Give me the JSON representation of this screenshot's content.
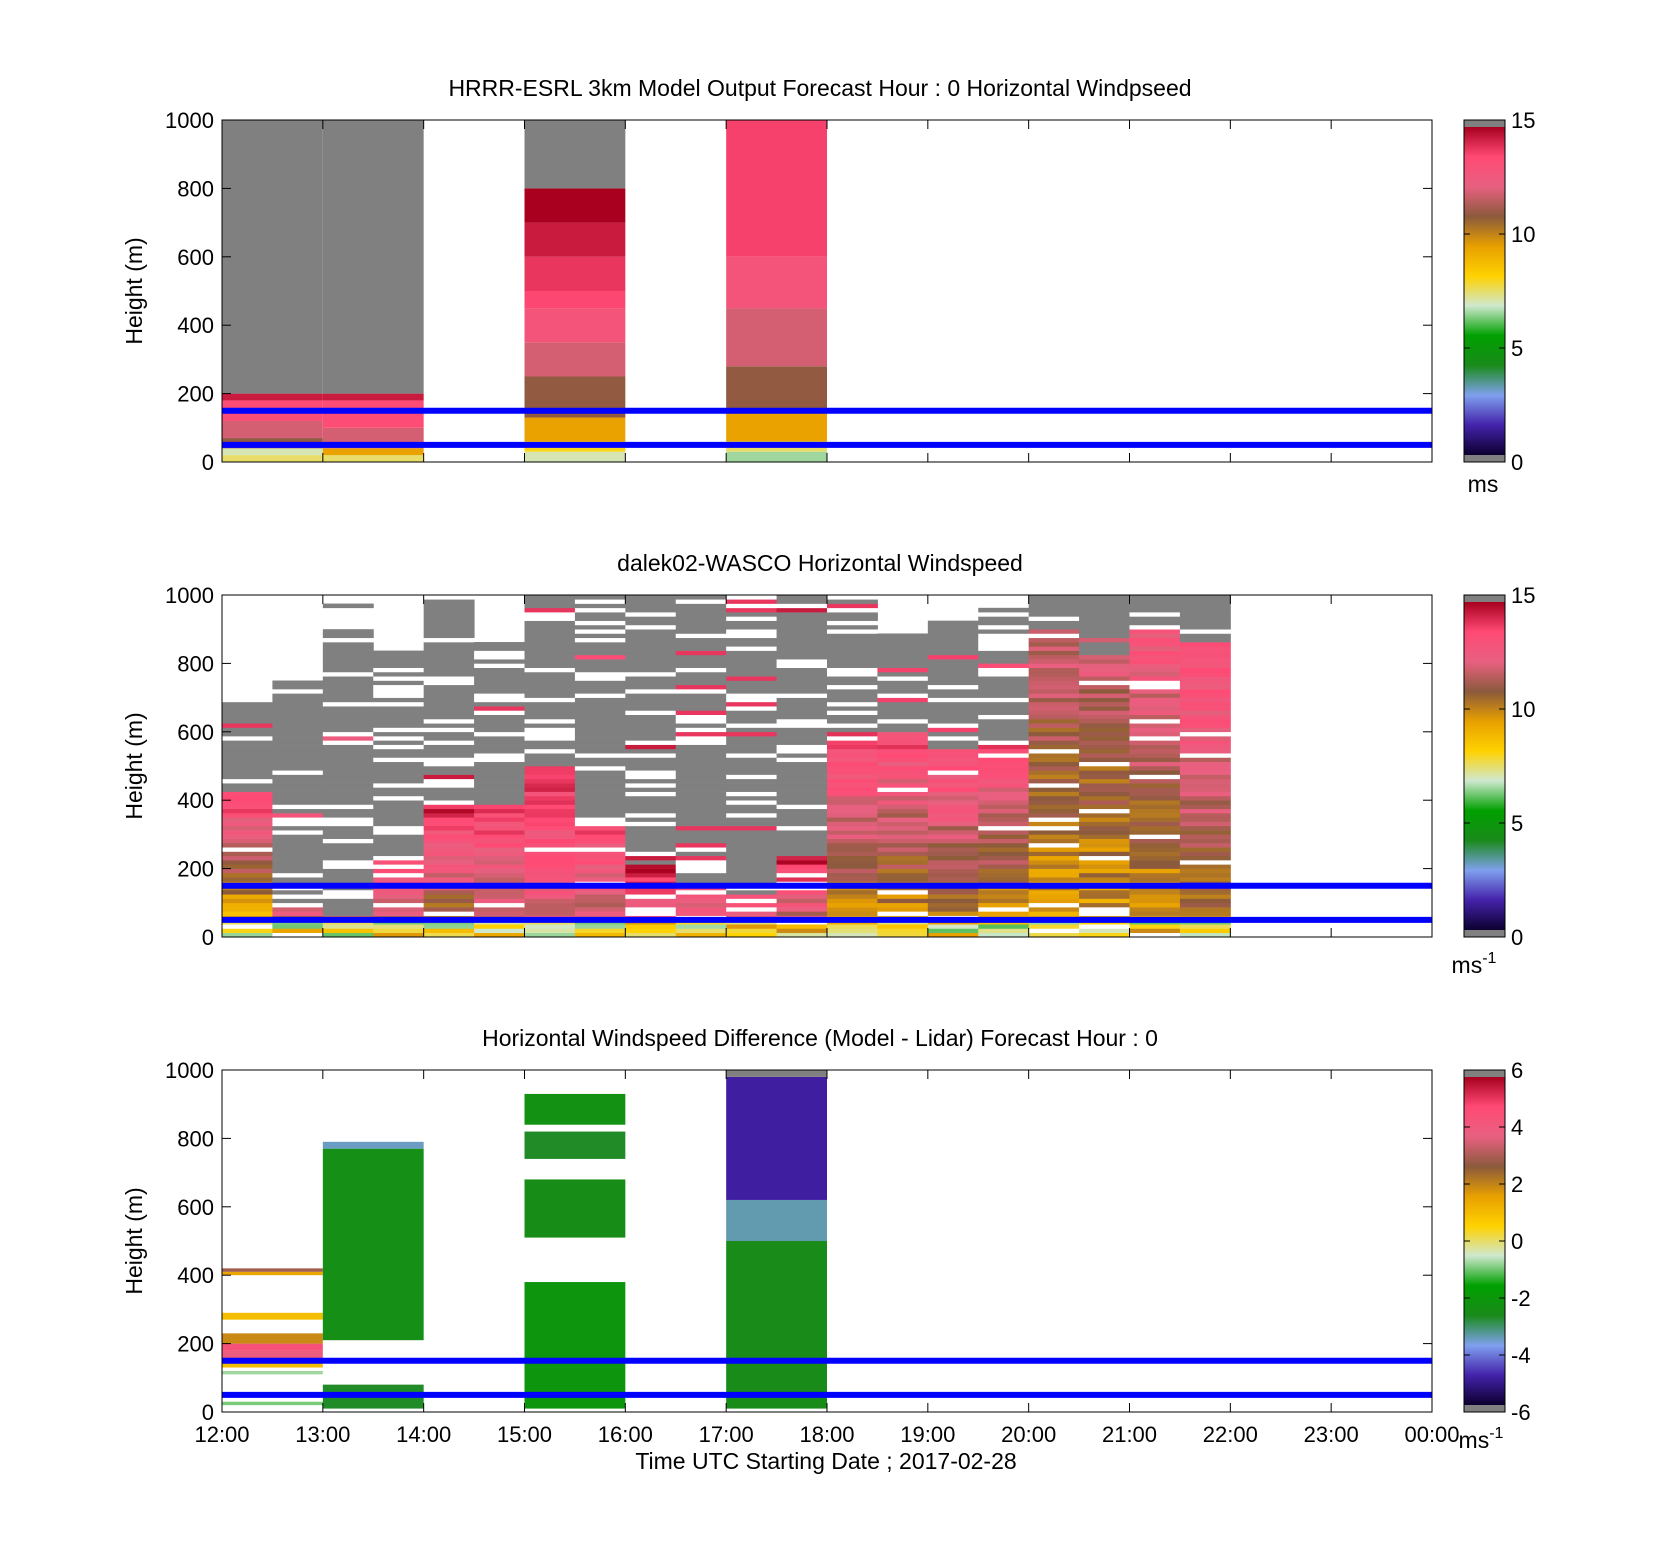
{
  "x_axis": {
    "ticks": [
      "12:00",
      "13:00",
      "14:00",
      "15:00",
      "16:00",
      "17:00",
      "18:00",
      "19:00",
      "20:00",
      "21:00",
      "22:00",
      "23:00",
      "00:00"
    ],
    "xlabel": "Time UTC  Starting Date ; 2017-02-28"
  },
  "overlay_lines": {
    "color": "#0000ff",
    "heights_m": [
      150,
      50
    ]
  },
  "chart_data": [
    {
      "type": "heatmap",
      "title": "HRRR-ESRL 3km Model Output   Forecast Hour : 0 Horizontal Windpseed",
      "ylabel": "Height (m)",
      "ylim": [
        0,
        1000
      ],
      "yticks": [
        "0",
        "200",
        "400",
        "600",
        "800",
        "1000"
      ],
      "colorbar": {
        "range": [
          0,
          15
        ],
        "ticks": [
          "0",
          "5",
          "10",
          "15"
        ],
        "unit": "ms",
        "unit_sup": "",
        "stops": [
          "#808080",
          "#0c0030",
          "#4422aa",
          "#7fa0ee",
          "#1a8a1a",
          "#00a000",
          "#cfe8cf",
          "#ffd200",
          "#e8a000",
          "#8b5a3c",
          "#e86080",
          "#ff4a75",
          "#a8001e",
          "#808080"
        ]
      },
      "columns": [
        {
          "x_start": "12:00",
          "x_end": "13:00",
          "segments": [
            {
              "from": 0,
              "to": 20,
              "value": 7.5
            },
            {
              "from": 20,
              "to": 40,
              "value": 7
            },
            {
              "from": 40,
              "to": 70,
              "value": 11
            },
            {
              "from": 70,
              "to": 120,
              "value": 12
            },
            {
              "from": 120,
              "to": 180,
              "value": 13.5
            },
            {
              "from": 180,
              "to": 200,
              "value": 14.5
            },
            {
              "from": 200,
              "to": 1000,
              "value": 16
            }
          ]
        },
        {
          "x_start": "13:00",
          "x_end": "14:00",
          "segments": [
            {
              "from": 0,
              "to": 20,
              "value": 7.5
            },
            {
              "from": 20,
              "to": 40,
              "value": 9.5
            },
            {
              "from": 40,
              "to": 100,
              "value": 12
            },
            {
              "from": 100,
              "to": 180,
              "value": 13.5
            },
            {
              "from": 180,
              "to": 200,
              "value": 14.5
            },
            {
              "from": 200,
              "to": 1000,
              "value": 16
            }
          ]
        },
        {
          "x_start": "15:00",
          "x_end": "16:00",
          "segments": [
            {
              "from": 0,
              "to": 30,
              "value": 7
            },
            {
              "from": 30,
              "to": 60,
              "value": 8
            },
            {
              "from": 60,
              "to": 130,
              "value": 9.5
            },
            {
              "from": 130,
              "to": 250,
              "value": 11
            },
            {
              "from": 250,
              "to": 350,
              "value": 12
            },
            {
              "from": 350,
              "to": 450,
              "value": 13
            },
            {
              "from": 450,
              "to": 500,
              "value": 13.7
            },
            {
              "from": 500,
              "to": 600,
              "value": 14
            },
            {
              "from": 600,
              "to": 700,
              "value": 14.5
            },
            {
              "from": 700,
              "to": 800,
              "value": 15
            },
            {
              "from": 800,
              "to": 1000,
              "value": 16
            }
          ]
        },
        {
          "x_start": "17:00",
          "x_end": "18:00",
          "segments": [
            {
              "from": 0,
              "to": 30,
              "value": 6.5
            },
            {
              "from": 30,
              "to": 60,
              "value": 7.5
            },
            {
              "from": 60,
              "to": 150,
              "value": 9.5
            },
            {
              "from": 150,
              "to": 280,
              "value": 11
            },
            {
              "from": 280,
              "to": 450,
              "value": 12
            },
            {
              "from": 450,
              "to": 600,
              "value": 13
            },
            {
              "from": 600,
              "to": 1000,
              "value": 13.8
            }
          ]
        }
      ]
    },
    {
      "type": "heatmap",
      "title": "dalek02-WASCO  Horizontal Windspeed",
      "ylabel": "Height (m)",
      "ylim": [
        0,
        1000
      ],
      "yticks": [
        "0",
        "200",
        "400",
        "600",
        "800",
        "1000"
      ],
      "colorbar": {
        "range": [
          0,
          15
        ],
        "ticks": [
          "0",
          "5",
          "10",
          "15"
        ],
        "unit": "ms",
        "unit_sup": "-1",
        "stops": [
          "#808080",
          "#0c0030",
          "#4422aa",
          "#7fa0ee",
          "#1a8a1a",
          "#00a000",
          "#cfe8cf",
          "#ffd200",
          "#e8a000",
          "#8b5a3c",
          "#e86080",
          "#ff4a75",
          "#a8001e",
          "#808080"
        ]
      },
      "profiles": [
        {
          "time": "12:00",
          "top_data": 420,
          "top_gray": 700,
          "ws_low": 8.5,
          "ws_high": 14
        },
        {
          "time": "12:30",
          "top_data": 90,
          "top_gray": 750,
          "ws_low": 10,
          "ws_high": 13
        },
        {
          "time": "13:00",
          "top_data": 60,
          "top_gray": 900,
          "ws_low": 11,
          "ws_high": 12.5
        },
        {
          "time": "13:30",
          "top_data": 220,
          "top_gray": 830,
          "ws_low": 11,
          "ws_high": 14
        },
        {
          "time": "14:00",
          "top_data": 380,
          "top_gray": 1000,
          "ws_low": 10,
          "ws_high": 14.5
        },
        {
          "time": "14:30",
          "top_data": 380,
          "top_gray": 860,
          "ws_low": 11,
          "ws_high": 14
        },
        {
          "time": "15:00",
          "top_data": 500,
          "top_gray": 1000,
          "ws_low": 12,
          "ws_high": 14
        },
        {
          "time": "15:30",
          "top_data": 330,
          "top_gray": 1000,
          "ws_low": 11.5,
          "ws_high": 13.5
        },
        {
          "time": "16:00",
          "top_data": 210,
          "top_gray": 1000,
          "ws_low": 12,
          "ws_high": 14.5
        },
        {
          "time": "16:30",
          "top_data": 150,
          "top_gray": 1000,
          "ws_low": 11,
          "ws_high": 14
        },
        {
          "time": "17:00",
          "top_data": 120,
          "top_gray": 1000,
          "ws_low": 10,
          "ws_high": 14
        },
        {
          "time": "17:30",
          "top_data": 230,
          "top_gray": 1000,
          "ws_low": 11,
          "ws_high": 14.5
        },
        {
          "time": "18:00",
          "top_data": 600,
          "top_gray": 1000,
          "ws_low": 9.5,
          "ws_high": 14
        },
        {
          "time": "18:30",
          "top_data": 600,
          "top_gray": 880,
          "ws_low": 9.5,
          "ws_high": 13.8
        },
        {
          "time": "19:00",
          "top_data": 550,
          "top_gray": 920,
          "ws_low": 9.5,
          "ws_high": 13.8
        },
        {
          "time": "19:30",
          "top_data": 560,
          "top_gray": 960,
          "ws_low": 9.5,
          "ws_high": 13.5
        },
        {
          "time": "20:00",
          "top_data": 900,
          "top_gray": 1000,
          "ws_low": 9.5,
          "ws_high": 12
        },
        {
          "time": "20:30",
          "top_data": 820,
          "top_gray": 1000,
          "ws_low": 9.5,
          "ws_high": 12
        },
        {
          "time": "21:00",
          "top_data": 900,
          "top_gray": 1000,
          "ws_low": 9.5,
          "ws_high": 13
        },
        {
          "time": "21:30",
          "top_data": 860,
          "top_gray": 1000,
          "ws_low": 10,
          "ws_high": 13.8
        }
      ]
    },
    {
      "type": "heatmap",
      "title": "Horizontal Windspeed Difference (Model - Lidar) Forecast Hour : 0",
      "ylabel": "Height (m)",
      "ylim": [
        0,
        1000
      ],
      "yticks": [
        "0",
        "200",
        "400",
        "600",
        "800",
        "1000"
      ],
      "colorbar": {
        "range": [
          -6,
          6
        ],
        "ticks": [
          "-6",
          "-4",
          "-2",
          "0",
          "2",
          "4",
          "6"
        ],
        "unit": "ms",
        "unit_sup": "-1",
        "stops": [
          "#808080",
          "#0c0030",
          "#4422aa",
          "#7fa0ee",
          "#1a8a1a",
          "#00a000",
          "#cfe8cf",
          "#ffd200",
          "#e8a000",
          "#8b5a3c",
          "#e86080",
          "#ff4a75",
          "#a8001e",
          "#808080"
        ]
      },
      "columns": [
        {
          "x_start": "12:00",
          "x_end": "13:00",
          "segments": [
            {
              "from": 20,
              "to": 30,
              "value": -1
            },
            {
              "from": 110,
              "to": 120,
              "value": -0.8
            },
            {
              "from": 130,
              "to": 150,
              "value": 1
            },
            {
              "from": 150,
              "to": 180,
              "value": 4
            },
            {
              "from": 180,
              "to": 200,
              "value": 4.5
            },
            {
              "from": 200,
              "to": 230,
              "value": 2
            },
            {
              "from": 270,
              "to": 290,
              "value": 1
            },
            {
              "from": 400,
              "to": 410,
              "value": 1.5
            },
            {
              "from": 410,
              "to": 420,
              "value": 3
            }
          ]
        },
        {
          "x_start": "13:00",
          "x_end": "14:00",
          "segments": [
            {
              "from": 10,
              "to": 80,
              "value": -2.8
            },
            {
              "from": 210,
              "to": 770,
              "value": -2.5
            },
            {
              "from": 770,
              "to": 790,
              "value": -3.6
            }
          ]
        },
        {
          "x_start": "15:00",
          "x_end": "16:00",
          "segments": [
            {
              "from": 10,
              "to": 380,
              "value": -2.2
            },
            {
              "from": 510,
              "to": 680,
              "value": -2.6
            },
            {
              "from": 740,
              "to": 820,
              "value": -2.8
            },
            {
              "from": 840,
              "to": 930,
              "value": -2.4
            }
          ]
        },
        {
          "x_start": "17:00",
          "x_end": "18:00",
          "segments": [
            {
              "from": 10,
              "to": 500,
              "value": -2.7
            },
            {
              "from": 500,
              "to": 620,
              "value": -3.5
            },
            {
              "from": 620,
              "to": 980,
              "value": -5
            },
            {
              "from": 980,
              "to": 1000,
              "value": -6.5
            }
          ]
        }
      ]
    }
  ]
}
